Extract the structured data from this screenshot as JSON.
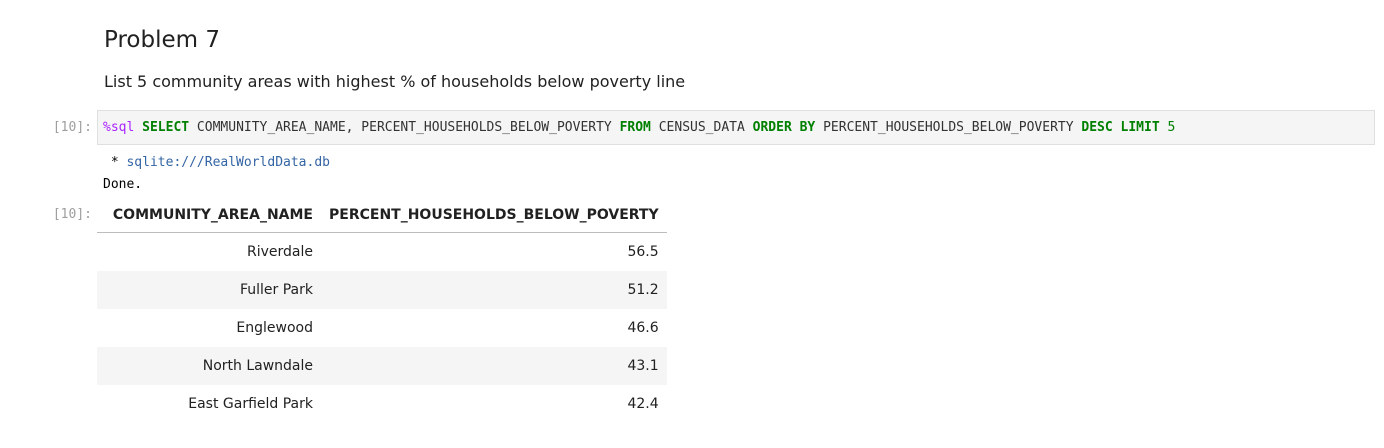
{
  "markdown": {
    "heading": "Problem 7",
    "description": "List 5 community areas with highest % of households below poverty line"
  },
  "input_cell": {
    "prompt": "[10]:",
    "code_tokens": [
      {
        "text": "%sql",
        "cls": "magic"
      },
      {
        "text": " ",
        "cls": "plain"
      },
      {
        "text": "SELECT",
        "cls": "kw"
      },
      {
        "text": " COMMUNITY_AREA_NAME, PERCENT_HOUSEHOLDS_BELOW_POVERTY ",
        "cls": "plain"
      },
      {
        "text": "FROM",
        "cls": "kw"
      },
      {
        "text": " CENSUS_DATA ",
        "cls": "plain"
      },
      {
        "text": "ORDER BY",
        "cls": "kw"
      },
      {
        "text": " PERCENT_HOUSEHOLDS_BELOW_POVERTY ",
        "cls": "plain"
      },
      {
        "text": "DESC LIMIT",
        "cls": "kw"
      },
      {
        "text": " ",
        "cls": "plain"
      },
      {
        "text": "5",
        "cls": "num"
      }
    ]
  },
  "stream_output": {
    "connection_prefix": " * ",
    "connection": "sqlite:///RealWorldData.db",
    "status": "Done."
  },
  "output_cell": {
    "prompt": "[10]:",
    "columns": [
      "COMMUNITY_AREA_NAME",
      "PERCENT_HOUSEHOLDS_BELOW_POVERTY"
    ],
    "rows": [
      [
        "Riverdale",
        "56.5"
      ],
      [
        "Fuller Park",
        "51.2"
      ],
      [
        "Englewood",
        "46.6"
      ],
      [
        "North Lawndale",
        "43.1"
      ],
      [
        "East Garfield Park",
        "42.4"
      ]
    ]
  }
}
